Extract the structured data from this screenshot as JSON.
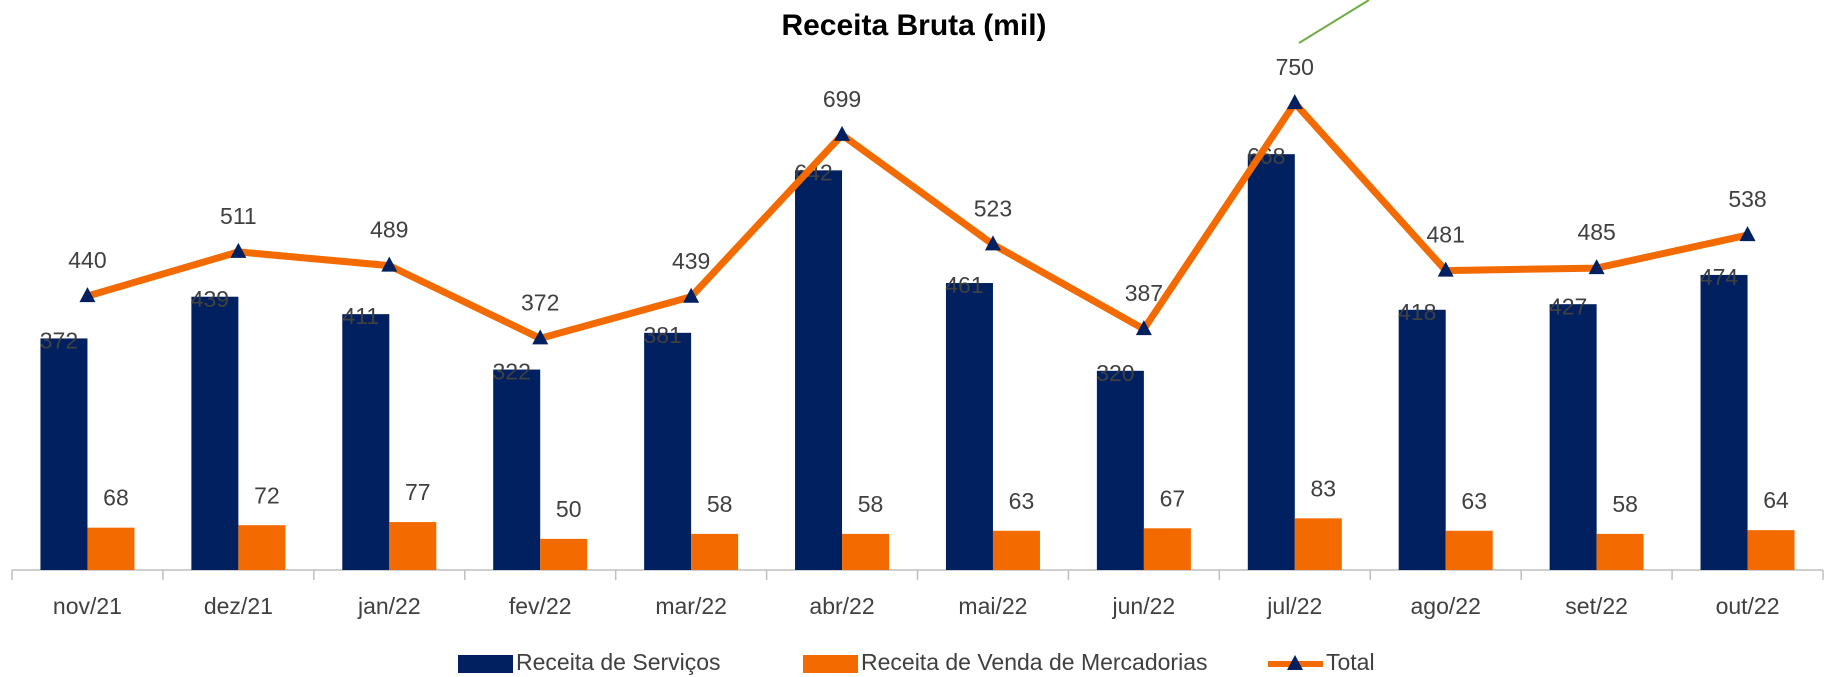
{
  "chart_data": {
    "type": "bar_line",
    "title": "Receita Bruta (mil)",
    "categories": [
      "nov/21",
      "dez/21",
      "jan/22",
      "fev/22",
      "mar/22",
      "abr/22",
      "mai/22",
      "jun/22",
      "jul/22",
      "ago/22",
      "set/22",
      "out/22"
    ],
    "series": [
      {
        "name": "Receita de Serviços",
        "type": "bar",
        "color": "#002060",
        "values": [
          372,
          439,
          411,
          322,
          381,
          642,
          461,
          320,
          668,
          418,
          427,
          474
        ]
      },
      {
        "name": "Receita de Venda de Mercadorias",
        "type": "bar",
        "color": "#f26a00",
        "values": [
          68,
          72,
          77,
          50,
          58,
          58,
          63,
          67,
          83,
          63,
          58,
          64
        ]
      },
      {
        "name": "Total",
        "type": "line",
        "color": "#f26a00",
        "marker_color": "#002060",
        "values": [
          440,
          511,
          489,
          372,
          439,
          699,
          523,
          387,
          750,
          481,
          485,
          538
        ]
      }
    ],
    "ylim": [
      0,
      800
    ],
    "legend": "bottom"
  }
}
